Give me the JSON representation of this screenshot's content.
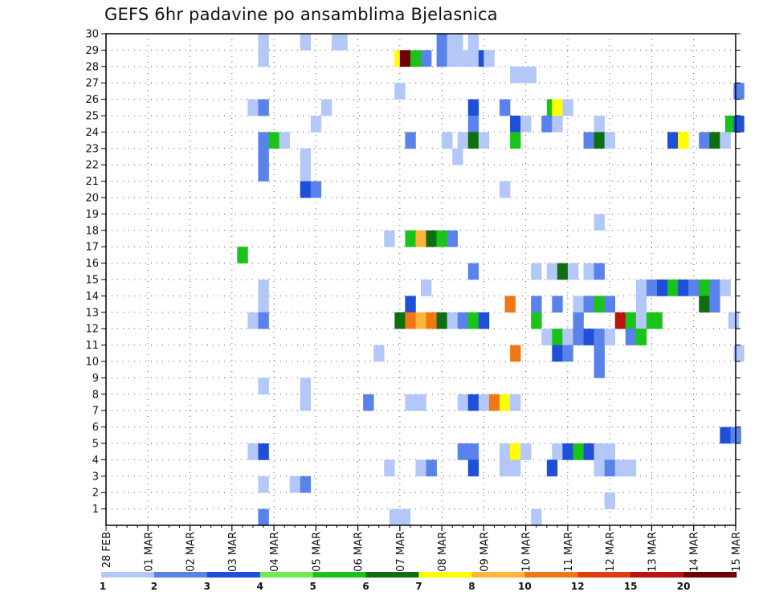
{
  "chart_data": {
    "type": "heatmap",
    "title": "GEFS 6hr padavine po ansamblima Bjelasnica",
    "xlabel": "",
    "ylabel": "",
    "x_ticks": [
      "28 FEB",
      "01 MAR",
      "02 MAR",
      "03 MAR",
      "04 MAR",
      "05 MAR",
      "06 MAR",
      "07 MAR",
      "08 MAR",
      "09 MAR",
      "10 MAR",
      "11 MAR",
      "12 MAR",
      "13 MAR",
      "14 MAR",
      "15 MAR"
    ],
    "y_ticks": [
      1,
      2,
      3,
      4,
      5,
      6,
      7,
      8,
      9,
      10,
      11,
      12,
      13,
      14,
      15,
      16,
      17,
      18,
      19,
      20,
      21,
      22,
      23,
      24,
      25,
      26,
      27,
      28,
      29,
      30
    ],
    "x_range_steps": [
      0,
      60
    ],
    "y_range": [
      0,
      30
    ],
    "grid": true,
    "colorbar": {
      "placement": "bottom",
      "labels": [
        "1",
        "2",
        "3",
        "4",
        "5",
        "6",
        "7",
        "8",
        "10",
        "12",
        "15",
        "20"
      ],
      "colors": [
        "#b4c8f8",
        "#5a82eb",
        "#1f4fd6",
        "#6eea55",
        "#19c319",
        "#0f6e0f",
        "#ffff00",
        "#ffb43c",
        "#f07814",
        "#e13c0f",
        "#b9140f",
        "#6e0000"
      ]
    },
    "cells_comment_free": true,
    "cells": [
      [
        14.5,
        28,
        0
      ],
      [
        14.5,
        29,
        0
      ],
      [
        18.5,
        29,
        0
      ],
      [
        21.5,
        29,
        0
      ],
      [
        22,
        29,
        0
      ],
      [
        31.5,
        29,
        1
      ],
      [
        32.5,
        29,
        0
      ],
      [
        33,
        29,
        0
      ],
      [
        34.5,
        29,
        0
      ],
      [
        27.5,
        28,
        6
      ],
      [
        28,
        28,
        11
      ],
      [
        29,
        28,
        4
      ],
      [
        30,
        28,
        1
      ],
      [
        31.5,
        28,
        1
      ],
      [
        32.5,
        28,
        0
      ],
      [
        33.5,
        28,
        0
      ],
      [
        34.5,
        28,
        0
      ],
      [
        35.5,
        28,
        2
      ],
      [
        36,
        28,
        0
      ],
      [
        38.5,
        27,
        0
      ],
      [
        39,
        27,
        0
      ],
      [
        40,
        27,
        0
      ],
      [
        27.5,
        26,
        0
      ],
      [
        59.8,
        26,
        1
      ],
      [
        13.5,
        25,
        0
      ],
      [
        14.5,
        25,
        1
      ],
      [
        20.5,
        25,
        0
      ],
      [
        34.5,
        25,
        2
      ],
      [
        37.5,
        25,
        1
      ],
      [
        42,
        25,
        4
      ],
      [
        42.5,
        25,
        6
      ],
      [
        43.5,
        25,
        0
      ],
      [
        19.5,
        24,
        0
      ],
      [
        34.5,
        24,
        1
      ],
      [
        38.5,
        24,
        2
      ],
      [
        39.5,
        24,
        0
      ],
      [
        41.5,
        24,
        1
      ],
      [
        42.5,
        24,
        0
      ],
      [
        46.5,
        24,
        0
      ],
      [
        59,
        24,
        4
      ],
      [
        59.8,
        24,
        2
      ],
      [
        14.5,
        23,
        1
      ],
      [
        15.5,
        23,
        4
      ],
      [
        16.5,
        23,
        0
      ],
      [
        28.5,
        23,
        1
      ],
      [
        32,
        23,
        0
      ],
      [
        33.5,
        23,
        0
      ],
      [
        34.5,
        23,
        5
      ],
      [
        35.5,
        23,
        0
      ],
      [
        38.5,
        23,
        4
      ],
      [
        45.5,
        23,
        1
      ],
      [
        46.5,
        23,
        5
      ],
      [
        47.5,
        23,
        0
      ],
      [
        53.5,
        23,
        2
      ],
      [
        54.5,
        23,
        6
      ],
      [
        56.5,
        23,
        1
      ],
      [
        57.5,
        23,
        5
      ],
      [
        58.5,
        23,
        0
      ],
      [
        14.5,
        22,
        1
      ],
      [
        18.5,
        22,
        0
      ],
      [
        33,
        22,
        0
      ],
      [
        14.5,
        21,
        1
      ],
      [
        18.5,
        21,
        0
      ],
      [
        18.5,
        20,
        2
      ],
      [
        19.5,
        20,
        1
      ],
      [
        37.5,
        20,
        0
      ],
      [
        46.5,
        18,
        0
      ],
      [
        26.5,
        17,
        0
      ],
      [
        28.5,
        17,
        4
      ],
      [
        29.5,
        17,
        7
      ],
      [
        30.5,
        17,
        5
      ],
      [
        31.5,
        17,
        4
      ],
      [
        32.5,
        17,
        1
      ],
      [
        12.5,
        16,
        4
      ],
      [
        34.5,
        15,
        1
      ],
      [
        40.5,
        15,
        0
      ],
      [
        42,
        15,
        0
      ],
      [
        43,
        15,
        5
      ],
      [
        44,
        15,
        0
      ],
      [
        45.5,
        15,
        0
      ],
      [
        46.5,
        15,
        1
      ],
      [
        14.5,
        14,
        0
      ],
      [
        30,
        14,
        0
      ],
      [
        50.5,
        14,
        0
      ],
      [
        51.5,
        14,
        1
      ],
      [
        52.5,
        14,
        2
      ],
      [
        53.5,
        14,
        4
      ],
      [
        54.5,
        14,
        2
      ],
      [
        55.5,
        14,
        1
      ],
      [
        56.5,
        14,
        4
      ],
      [
        57.5,
        14,
        1
      ],
      [
        58.5,
        14,
        0
      ],
      [
        14.5,
        13,
        0
      ],
      [
        28.5,
        13,
        2
      ],
      [
        38,
        13,
        8
      ],
      [
        40.5,
        13,
        1
      ],
      [
        42.5,
        13,
        1
      ],
      [
        44.5,
        13,
        0
      ],
      [
        45.5,
        13,
        1
      ],
      [
        46.5,
        13,
        4
      ],
      [
        47.5,
        13,
        1
      ],
      [
        50.5,
        13,
        0
      ],
      [
        56.5,
        13,
        5
      ],
      [
        57.5,
        13,
        1
      ],
      [
        13.5,
        12,
        0
      ],
      [
        14.5,
        12,
        1
      ],
      [
        27.5,
        12,
        5
      ],
      [
        28.5,
        12,
        8
      ],
      [
        29.5,
        12,
        7
      ],
      [
        30.5,
        12,
        8
      ],
      [
        31.5,
        12,
        5
      ],
      [
        32.5,
        12,
        0
      ],
      [
        33.5,
        12,
        1
      ],
      [
        34.5,
        12,
        4
      ],
      [
        35.5,
        12,
        2
      ],
      [
        40.5,
        12,
        4
      ],
      [
        44.5,
        12,
        1
      ],
      [
        48.5,
        12,
        10
      ],
      [
        49.5,
        12,
        4
      ],
      [
        50.5,
        12,
        0
      ],
      [
        51.5,
        12,
        4
      ],
      [
        52,
        12,
        4
      ],
      [
        59.3,
        12,
        0
      ],
      [
        41.5,
        11,
        0
      ],
      [
        42.5,
        11,
        4
      ],
      [
        43.5,
        11,
        0
      ],
      [
        44.5,
        11,
        1
      ],
      [
        45.5,
        11,
        2
      ],
      [
        46.5,
        11,
        1
      ],
      [
        47.5,
        11,
        0
      ],
      [
        49.5,
        11,
        1
      ],
      [
        50.5,
        11,
        4
      ],
      [
        25.5,
        10,
        0
      ],
      [
        38.5,
        10,
        8
      ],
      [
        42.5,
        10,
        2
      ],
      [
        43.5,
        10,
        1
      ],
      [
        46.5,
        10,
        1
      ],
      [
        59.8,
        10,
        0
      ],
      [
        46.5,
        9,
        1
      ],
      [
        14.5,
        8,
        0
      ],
      [
        18.5,
        8,
        0
      ],
      [
        18.5,
        7,
        0
      ],
      [
        24.5,
        7,
        1
      ],
      [
        28.5,
        7,
        0
      ],
      [
        29.5,
        7,
        0
      ],
      [
        33.5,
        7,
        0
      ],
      [
        34.5,
        7,
        2
      ],
      [
        35.5,
        7,
        0
      ],
      [
        36.5,
        7,
        8
      ],
      [
        37.5,
        7,
        6
      ],
      [
        38.5,
        7,
        0
      ],
      [
        58.5,
        5,
        2
      ],
      [
        59.5,
        5,
        1
      ],
      [
        13.5,
        4,
        0
      ],
      [
        14.5,
        4,
        2
      ],
      [
        33.5,
        4,
        1
      ],
      [
        34.5,
        4,
        1
      ],
      [
        37.5,
        4,
        0
      ],
      [
        38.5,
        4,
        6
      ],
      [
        39.5,
        4,
        0
      ],
      [
        42.5,
        4,
        0
      ],
      [
        43.5,
        4,
        2
      ],
      [
        44.5,
        4,
        4
      ],
      [
        45.5,
        4,
        2
      ],
      [
        46.5,
        4,
        0
      ],
      [
        47.5,
        4,
        0
      ],
      [
        26.5,
        3,
        0
      ],
      [
        29.5,
        3,
        0
      ],
      [
        30.5,
        3,
        1
      ],
      [
        34.5,
        3,
        2
      ],
      [
        37.5,
        3,
        0
      ],
      [
        38.5,
        3,
        0
      ],
      [
        42,
        3,
        2
      ],
      [
        46.5,
        3,
        0
      ],
      [
        47.5,
        3,
        1
      ],
      [
        48.5,
        3,
        0
      ],
      [
        49.5,
        3,
        0
      ],
      [
        14.5,
        2,
        0
      ],
      [
        17.5,
        2,
        0
      ],
      [
        18.5,
        2,
        1
      ],
      [
        47.5,
        1,
        0
      ],
      [
        14.5,
        0,
        1
      ],
      [
        27,
        0,
        0
      ],
      [
        28,
        0,
        0
      ],
      [
        40.5,
        0,
        0
      ]
    ]
  }
}
